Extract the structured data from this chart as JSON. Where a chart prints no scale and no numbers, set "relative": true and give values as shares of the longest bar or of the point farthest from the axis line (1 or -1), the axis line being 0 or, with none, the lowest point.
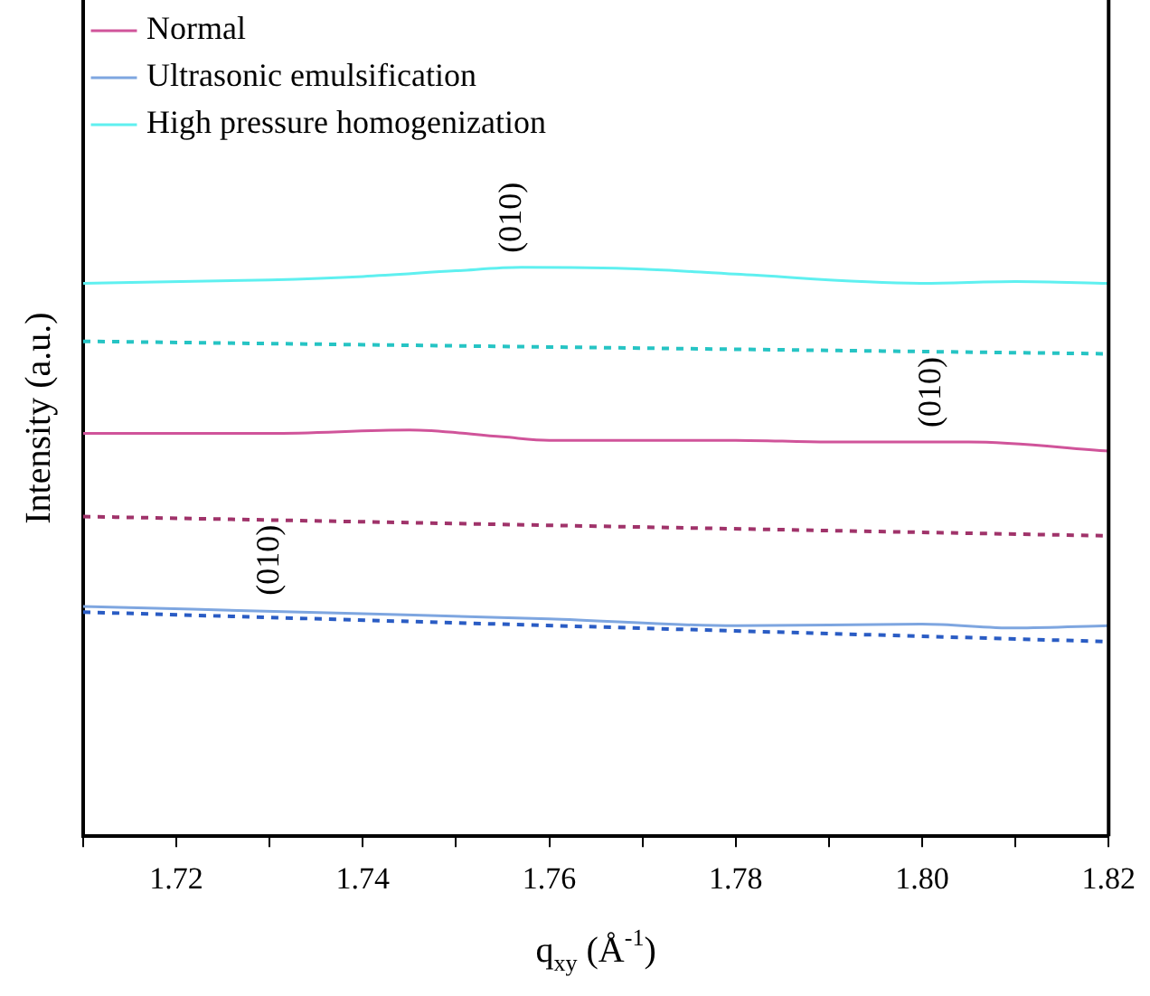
{
  "chart_data": {
    "type": "line",
    "relative": true,
    "xlabel": "q$_{xy}$ (Å$^{-1}$)",
    "ylabel": "Intensity (a.u.)",
    "xlim": [
      1.71,
      1.82
    ],
    "xticks": [
      {
        "value": 1.71,
        "label": null
      },
      1.72,
      {
        "value": 1.73,
        "label": null
      },
      1.74,
      {
        "value": 1.75,
        "label": null
      },
      1.76,
      {
        "value": 1.77,
        "label": null
      },
      1.78,
      {
        "value": 1.79,
        "label": null
      },
      {
        "value": 1.8,
        "label": "1.80"
      },
      {
        "value": 1.81,
        "label": null
      },
      1.82
    ],
    "legend": "top left",
    "grid": false,
    "marker": "none",
    "series": [
      {
        "name": "Normal",
        "color": "#d0549a",
        "line_style": "solid",
        "x": [
          1.71,
          1.73,
          1.745,
          1.755,
          1.76,
          1.78,
          1.79,
          1.805,
          1.82
        ],
        "values": [
          0.708,
          0.708,
          0.714,
          0.702,
          0.696,
          0.696,
          0.693,
          0.693,
          0.677
        ]
      },
      {
        "name": "Ultrasonic emulsification",
        "color": "#7ea6e0",
        "line_style": "solid",
        "x": [
          1.71,
          1.74,
          1.76,
          1.78,
          1.8,
          1.81,
          1.82
        ],
        "values": [
          0.404,
          0.391,
          0.382,
          0.37,
          0.373,
          0.366,
          0.37
        ]
      },
      {
        "name": "High pressure homogenization",
        "color": "#5ff0f0",
        "line_style": "solid",
        "x": [
          1.71,
          1.73,
          1.74,
          1.75,
          1.757,
          1.77,
          1.78,
          1.8,
          1.81,
          1.82
        ],
        "values": [
          0.972,
          0.978,
          0.984,
          0.994,
          1,
          0.997,
          0.988,
          0.972,
          0.975,
          0.972
        ]
      },
      {
        "color": "#26c4c4",
        "line_style": "dashed",
        "x": [
          1.71,
          1.82
        ],
        "values": [
          0.87,
          0.848
        ]
      },
      {
        "color": "#a0336a",
        "line_style": "dashed",
        "x": [
          1.71,
          1.82
        ],
        "values": [
          0.562,
          0.528
        ]
      },
      {
        "color": "#2a5cc4",
        "line_style": "dashed",
        "x": [
          1.71,
          1.82
        ],
        "values": [
          0.394,
          0.342
        ]
      }
    ],
    "annotations": [
      {
        "text": "(010)",
        "x": 1.756,
        "y": 1
      },
      {
        "text": "(010)",
        "x": 1.801,
        "y": 0.693
      },
      {
        "text": "(010)",
        "x": 1.73,
        "y": 0.398
      }
    ]
  }
}
